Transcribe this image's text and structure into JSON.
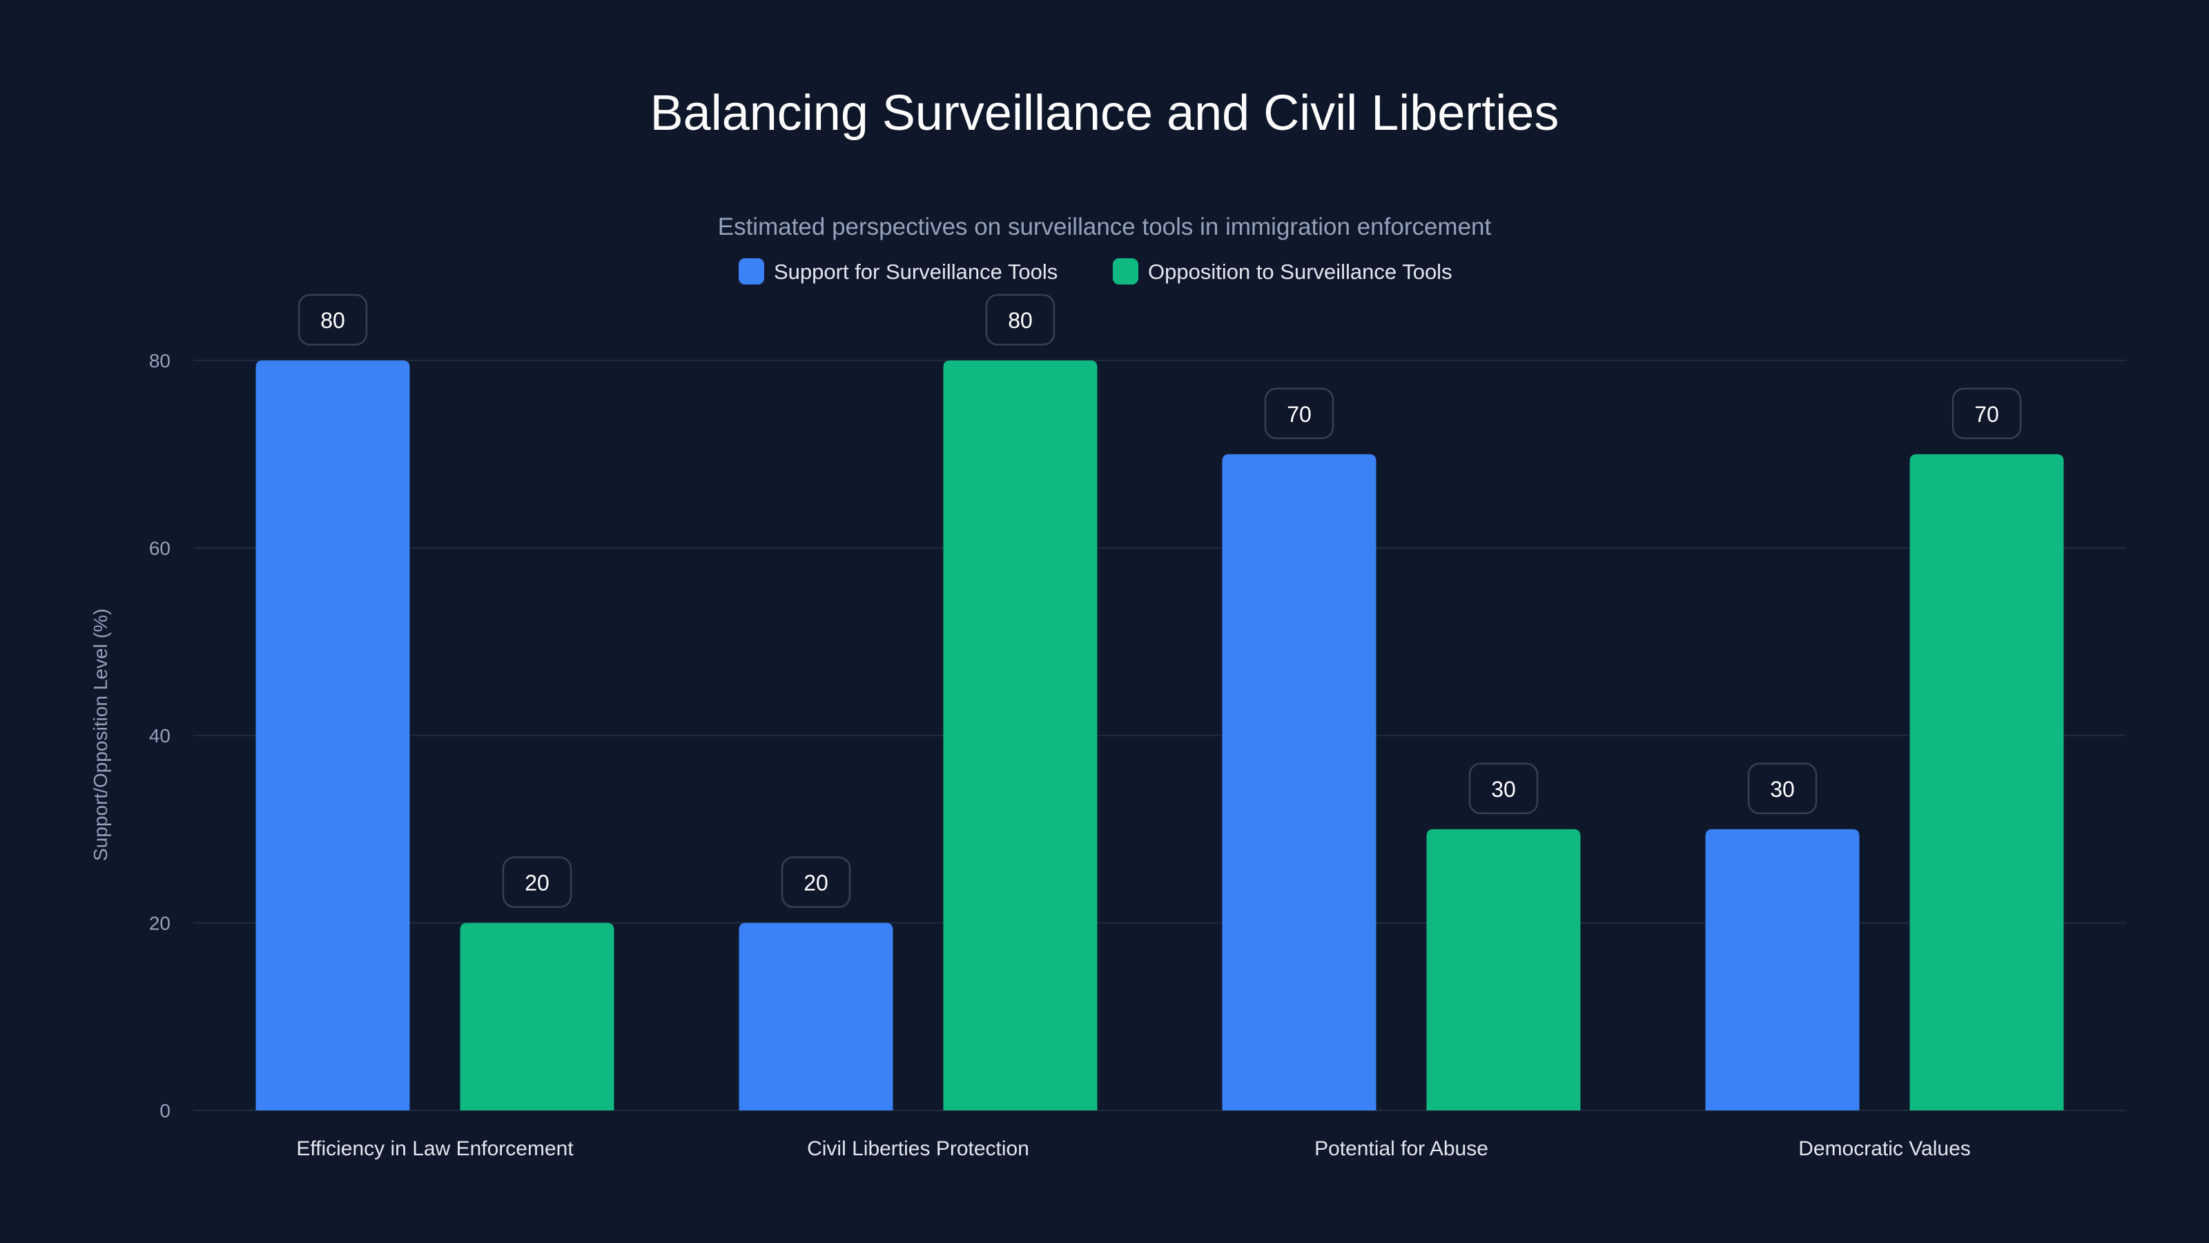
{
  "chart_data": {
    "type": "bar",
    "title": "Balancing Surveillance and Civil Liberties",
    "subtitle": "Estimated perspectives on surveillance tools in immigration enforcement",
    "xlabel": "",
    "ylabel": "Support/Opposition Level (%)",
    "ylim": [
      0,
      80
    ],
    "yticks": [
      "0",
      "20",
      "40",
      "60",
      "80"
    ],
    "grid": true,
    "legend_position": "top-center",
    "categories": [
      "Efficiency in Law Enforcement",
      "Civil Liberties Protection",
      "Potential for Abuse",
      "Democratic Values"
    ],
    "series": [
      {
        "name": "Support for Surveillance Tools",
        "color": "#3b82f6",
        "values": [
          80,
          20,
          70,
          30
        ]
      },
      {
        "name": "Opposition to Surveillance Tools",
        "color": "#10b981",
        "values": [
          20,
          80,
          30,
          70
        ]
      }
    ]
  }
}
